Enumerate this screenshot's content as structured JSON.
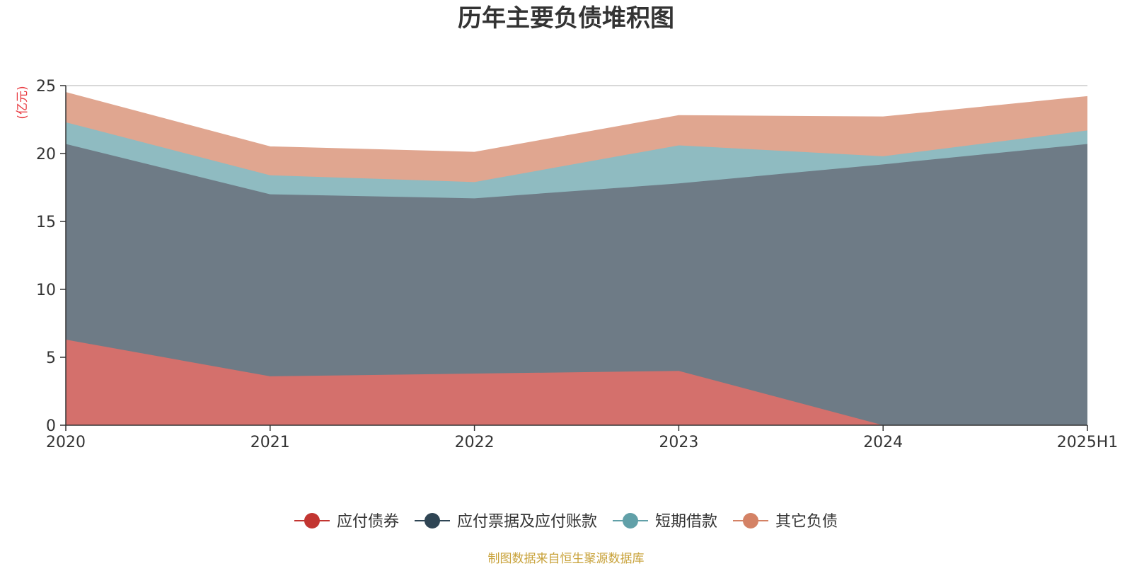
{
  "colors": {
    "axis": "#333333",
    "grid": "#cccccc",
    "unit_label": "#e8373d",
    "source_text": "#c8a23a"
  },
  "chart_data": {
    "type": "area",
    "stacked": true,
    "title": "历年主要负债堆积图",
    "unit_label": "(亿元)",
    "categories": [
      "2020",
      "2021",
      "2022",
      "2023",
      "2024",
      "2025H1"
    ],
    "ylim": [
      0,
      25
    ],
    "yticks": [
      0,
      5,
      10,
      15,
      20,
      25
    ],
    "grid": true,
    "legend_position": "bottom",
    "series": [
      {
        "name": "应付债券",
        "color": "#c23531",
        "fill": "#d4706c",
        "values": [
          6.3,
          3.6,
          3.8,
          4.0,
          0.0,
          0.0
        ]
      },
      {
        "name": "应付票据及应付账款",
        "color": "#2f4554",
        "fill": "#6e7b86",
        "values": [
          14.4,
          13.4,
          12.9,
          13.8,
          19.2,
          20.7
        ]
      },
      {
        "name": "短期借款",
        "color": "#61a0a8",
        "fill": "#8fbbc1",
        "values": [
          1.6,
          1.4,
          1.2,
          2.8,
          0.6,
          1.0
        ]
      },
      {
        "name": "其它负债",
        "color": "#d48265",
        "fill": "#e0a690",
        "values": [
          2.2,
          2.1,
          2.2,
          2.2,
          2.9,
          2.5
        ]
      }
    ]
  },
  "footer": {
    "source": "制图数据来自恒生聚源数据库"
  }
}
